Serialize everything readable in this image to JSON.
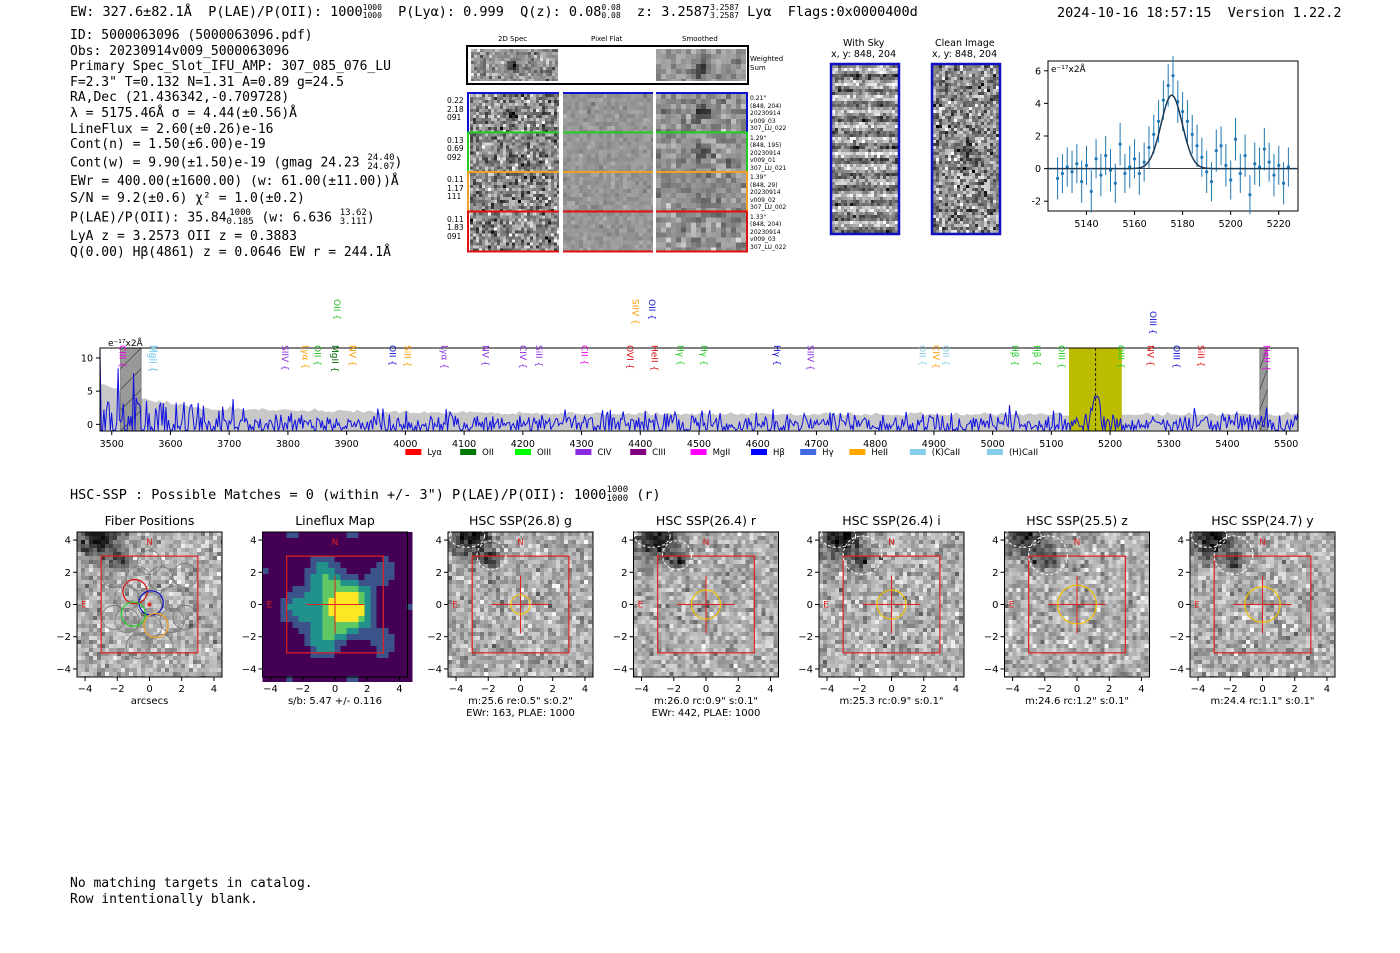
{
  "header": {
    "ew": "EW: 327.6±82.1Å",
    "plae_prefix": "P(LAE)/P(OII): 1000",
    "plae_hi": "1000",
    "plae_lo": "1000",
    "plya": "P(Lyα): 0.999",
    "qz_prefix": "Q(z): 0.08",
    "qz_hi": "0.08",
    "qz_lo": "0.08",
    "z_prefix": "z: 3.2587",
    "z_hi": "3.2587",
    "z_lo": "3.2587",
    "z_line": "Lyα",
    "flags": "Flags:0x0000400d",
    "timestamp": "2024-10-16 18:57:15",
    "version": "Version 1.22.2"
  },
  "info": {
    "id": "ID: 5000063096 (5000063096.pdf)",
    "obs": "Obs: 20230914v009_5000063096",
    "primary": "Primary Spec_Slot_IFU_AMP: 307_085_076_LU",
    "fit": "F=2.3\"  T=0.132  N=1.31  A=0.89  g=24.5",
    "radec": "RA,Dec (21.436342,-0.709728)",
    "lambda": "λ = 5175.46Å  σ = 4.44(±0.56)Å",
    "lineflux": "LineFlux = 2.60(±0.26)e-16",
    "contn": "Cont(n) = 1.50(±6.00)e-19",
    "contw_prefix": "Cont(w) = 9.90(±1.50)e-19 (gmag 24.23",
    "contw_hi": "24.40",
    "contw_lo": "24.07",
    "contw_suffix": ")",
    "ewr": "EWr = 400.00(±1600.00) (w: 61.00(±11.00))Å",
    "sn": "S/N = 9.2(±0.6)  χ² = 1.0(±0.2)",
    "plae_prefix": "P(LAE)/P(OII): 35.84",
    "plae_hi": "1000",
    "plae_lo": "0.185",
    "plae_w": "(w: 6.636",
    "plae_w_hi": "13.62",
    "plae_w_lo": "3.111",
    "plae_w_suffix": ")",
    "lya_z": "LyA z = 3.2573  OII z = 0.3883",
    "q_line": "Q(0.00) Hβ(4861) z = 0.0646  EW r = 244.1Å"
  },
  "cutouts": {
    "col_titles": [
      "2D Spec",
      "Pixel Flat",
      "Smoothed"
    ],
    "weighted_label": "Weighted Sum",
    "rows": [
      {
        "left": [
          "0.22",
          "2.18",
          "091"
        ],
        "right": [
          "0.21\"",
          "(848, 204)",
          "20230914",
          "v009_03",
          "307_LU_022"
        ],
        "color": "#1010d0"
      },
      {
        "left": [
          "0.13",
          "0.69",
          "092"
        ],
        "right": [
          "1.29\"",
          "(848, 195)",
          "20230914",
          "v009_01",
          "307_LU_021"
        ],
        "color": "#22cc22"
      },
      {
        "left": [
          "0.11",
          "1.17",
          "111"
        ],
        "right": [
          "1.39\"",
          "(848, 29)",
          "20230914",
          "v009_02",
          "307_LU_002"
        ],
        "color": "#f0a020"
      },
      {
        "left": [
          "0.11",
          "1.83",
          "091"
        ],
        "right": [
          "1.33\"",
          "(848, 204)",
          "20230914",
          "v009_03",
          "307_LU_022"
        ],
        "color": "#e01010"
      }
    ],
    "with_sky_title": "With Sky",
    "with_sky_coords": "x, y: 848, 204",
    "clean_title": "Clean Image",
    "clean_coords": "x, y: 848, 204"
  },
  "line_fit_chart": {
    "type": "scatter",
    "units_label": "e⁻¹⁷x2Å",
    "xlim": [
      5124,
      5228
    ],
    "ylim": [
      -2.6,
      6.6
    ],
    "xticks": [
      5140,
      5160,
      5180,
      5200,
      5220
    ],
    "yticks": [
      -2,
      0,
      2,
      4,
      6
    ],
    "points_x": [
      5128,
      5130,
      5132,
      5134,
      5136,
      5138,
      5140,
      5142,
      5144,
      5146,
      5148,
      5150,
      5152,
      5154,
      5156,
      5158,
      5160,
      5162,
      5164,
      5166,
      5168,
      5170,
      5172,
      5174,
      5176,
      5178,
      5180,
      5182,
      5184,
      5186,
      5188,
      5190,
      5192,
      5194,
      5196,
      5198,
      5200,
      5202,
      5204,
      5206,
      5208,
      5210,
      5212,
      5214,
      5216,
      5218,
      5220,
      5222,
      5224
    ],
    "points_y": [
      -0.6,
      -0.3,
      0.1,
      -0.2,
      0.3,
      -0.8,
      0.2,
      -1.4,
      0.6,
      -0.4,
      0.8,
      -0.1,
      -0.9,
      1.5,
      -0.3,
      0.1,
      0.6,
      -0.3,
      0.4,
      1.3,
      2.1,
      2.9,
      4.2,
      5.1,
      5.7,
      4.1,
      3.5,
      2.9,
      2.1,
      1.4,
      0.7,
      -0.2,
      -0.8,
      1.1,
      1.4,
      0.2,
      -0.7,
      1.8,
      -0.3,
      0.8,
      -1.6,
      0.3,
      0.1,
      1.2,
      0.4,
      -0.4,
      0.2,
      -0.9,
      0.1
    ],
    "errors": [
      1.3,
      1.2,
      1.2,
      1.3,
      1.2,
      1.3,
      1.2,
      1.3,
      1.2,
      1.3,
      1.2,
      1.3,
      1.2,
      1.3,
      1.2,
      1.3,
      1.2,
      1.3,
      1.2,
      1.3,
      1.2,
      1.3,
      1.2,
      1.3,
      1.2,
      1.3,
      1.2,
      1.3,
      1.2,
      1.3,
      1.2,
      1.3,
      1.2,
      1.3,
      1.2,
      1.3,
      1.2,
      1.3,
      1.2,
      1.3,
      1.2,
      1.3,
      1.2,
      1.3,
      1.2,
      1.3,
      1.2,
      1.3,
      1.2
    ],
    "fit": {
      "center": 5175.46,
      "sigma": 4.44,
      "amplitude": 4.5
    }
  },
  "full_spectrum_chart": {
    "type": "line",
    "units_label": "e⁻¹⁷x2Å",
    "xlim": [
      3480,
      5520
    ],
    "ylim": [
      -1,
      11.5
    ],
    "xticks": [
      3500,
      3600,
      3700,
      3800,
      3900,
      4000,
      4100,
      4200,
      4300,
      4400,
      4500,
      4600,
      4700,
      4800,
      4900,
      5000,
      5100,
      5200,
      5300,
      5400,
      5500
    ],
    "yticks": [
      0,
      5,
      10
    ],
    "highlight_band": [
      5130,
      5220
    ],
    "highlight_color": "#bcbc00",
    "masked_regions": [
      [
        3515,
        3550
      ],
      [
        5455,
        5468
      ]
    ],
    "line_center": 5175.46,
    "seed": 7,
    "line_labels": [
      {
        "name": "CIII",
        "wave": 3508,
        "color": "#ee00ee",
        "tier": 2
      },
      {
        "name": "MgII",
        "wave": 3558,
        "color": "#87ceeb",
        "tier": 2
      },
      {
        "name": "MgII",
        "wave": 3562,
        "color": "#87ceeb",
        "tier": 2
      },
      {
        "name": "SIIV",
        "wave": 3785,
        "color": "#8a2be2",
        "tier": 2
      },
      {
        "name": "Lyα",
        "wave": 3820,
        "color": "#ff9900",
        "tier": 2
      },
      {
        "name": "OII",
        "wave": 3840,
        "color": "#22bb22",
        "tier": 2
      },
      {
        "name": "MgII",
        "wave": 3870,
        "color": "#006600",
        "tier": 2
      },
      {
        "name": "OII",
        "wave": 3873,
        "color": "#22bb22",
        "tier": 0
      },
      {
        "name": "NV",
        "wave": 3900,
        "color": "#ff9900",
        "tier": 2
      },
      {
        "name": "OII",
        "wave": 3968,
        "color": "#1010d0",
        "tier": 2
      },
      {
        "name": "SiII",
        "wave": 3993,
        "color": "#ff9900",
        "tier": 2
      },
      {
        "name": "Lyα",
        "wave": 4056,
        "color": "#8a2be2",
        "tier": 2
      },
      {
        "name": "NV",
        "wave": 4126,
        "color": "#8a2be2",
        "tier": 2
      },
      {
        "name": "CIV",
        "wave": 4190,
        "color": "#8a2be2",
        "tier": 2
      },
      {
        "name": "SiII",
        "wave": 4217,
        "color": "#8a2be2",
        "tier": 2
      },
      {
        "name": "CII",
        "wave": 4295,
        "color": "#ee00ee",
        "tier": 2
      },
      {
        "name": "OVI",
        "wave": 4372,
        "color": "#e01010",
        "tier": 2
      },
      {
        "name": "SIIV",
        "wave": 4382,
        "color": "#ff9900",
        "tier": 0
      },
      {
        "name": "OII",
        "wave": 4410,
        "color": "#1010d0",
        "tier": 0
      },
      {
        "name": "HeII",
        "wave": 4414,
        "color": "#e01010",
        "tier": 2
      },
      {
        "name": "Hγ",
        "wave": 4458,
        "color": "#22cc22",
        "tier": 2
      },
      {
        "name": "Hγ",
        "wave": 4498,
        "color": "#22cc22",
        "tier": 2
      },
      {
        "name": "Hγ",
        "wave": 4623,
        "color": "#1010d0",
        "tier": 2
      },
      {
        "name": "SIIV",
        "wave": 4680,
        "color": "#8a2be2",
        "tier": 2
      },
      {
        "name": "OII",
        "wave": 4870,
        "color": "#87ceeb",
        "tier": 2
      },
      {
        "name": "CIV",
        "wave": 4893,
        "color": "#ff9900",
        "tier": 2
      },
      {
        "name": "OII",
        "wave": 4910,
        "color": "#87ceeb",
        "tier": 2
      },
      {
        "name": "Hβ",
        "wave": 5028,
        "color": "#22cc22",
        "tier": 2
      },
      {
        "name": "Hβ",
        "wave": 5065,
        "color": "#22cc22",
        "tier": 2
      },
      {
        "name": "OIII",
        "wave": 5107,
        "color": "#22cc22",
        "tier": 2
      },
      {
        "name": "OIII",
        "wave": 5208,
        "color": "#22cc22",
        "tier": 2
      },
      {
        "name": "NV",
        "wave": 5259,
        "color": "#e01010",
        "tier": 2
      },
      {
        "name": "OIII",
        "wave": 5263,
        "color": "#1010d0",
        "tier": 1
      },
      {
        "name": "OIII",
        "wave": 5303,
        "color": "#1010d0",
        "tier": 2
      },
      {
        "name": "SiII",
        "wave": 5345,
        "color": "#e01010",
        "tier": 2
      },
      {
        "name": "HeII",
        "wave": 5456,
        "color": "#ee00ee",
        "tier": 2
      }
    ],
    "legend": [
      {
        "label": "Lyα",
        "color": "#ff0000"
      },
      {
        "label": "OII",
        "color": "#007700"
      },
      {
        "label": "OIII",
        "color": "#00ff00"
      },
      {
        "label": "CIV",
        "color": "#8a2be2"
      },
      {
        "label": "CIII",
        "color": "#800080"
      },
      {
        "label": "MgII",
        "color": "#ff00ff"
      },
      {
        "label": "Hβ",
        "color": "#0000ff"
      },
      {
        "label": "Hγ",
        "color": "#4169e1"
      },
      {
        "label": "HeII",
        "color": "#ffa500"
      },
      {
        "label": "(K)CaII",
        "color": "#87ceeb"
      },
      {
        "label": "(H)CaII",
        "color": "#87ceeb"
      }
    ]
  },
  "hsc": {
    "header_prefix": "HSC-SSP : Possible Matches = 0 (within +/- 3\")  P(LAE)/P(OII): 1000",
    "header_hi": "1000",
    "header_lo": "1000",
    "header_suffix": "(r)",
    "axis_ticks": [
      "−4",
      "−2",
      "0",
      "2",
      "4"
    ],
    "north": "N",
    "east": "E",
    "panels": [
      {
        "title": "Fiber Positions",
        "sub1": "arcsecs",
        "sub2": "",
        "kind": "fiber"
      },
      {
        "title": "Lineflux Map",
        "sub1": "s/b: 5.47 +/- 0.116",
        "sub2": "",
        "kind": "flux"
      },
      {
        "title": "HSC SSP(26.8) g",
        "sub1": "m:25.6  re:0.5\"  s:0.2\"",
        "sub2": "EWr: 163, PLAE: 1000",
        "kind": "img"
      },
      {
        "title": "HSC SSP(26.4) r",
        "sub1": "m:26.0 rc:0.9\"  s:0.1\"",
        "sub2": "EWr: 442, PLAE: 1000",
        "kind": "img"
      },
      {
        "title": "HSC SSP(26.4) i",
        "sub1": "m:25.3 rc:0.9\"  s:0.1\"",
        "sub2": "",
        "kind": "img"
      },
      {
        "title": "HSC SSP(25.5) z",
        "sub1": "m:24.6 rc:1.2\"  s:0.1\"",
        "sub2": "",
        "kind": "img"
      },
      {
        "title": "HSC SSP(24.7) y",
        "sub1": "m:24.4 rc:1.1\"  s:0.1\"",
        "sub2": "",
        "kind": "img"
      }
    ]
  },
  "footer": {
    "line1": "No matching targets in catalog.",
    "line2": "Row intentionally blank."
  }
}
